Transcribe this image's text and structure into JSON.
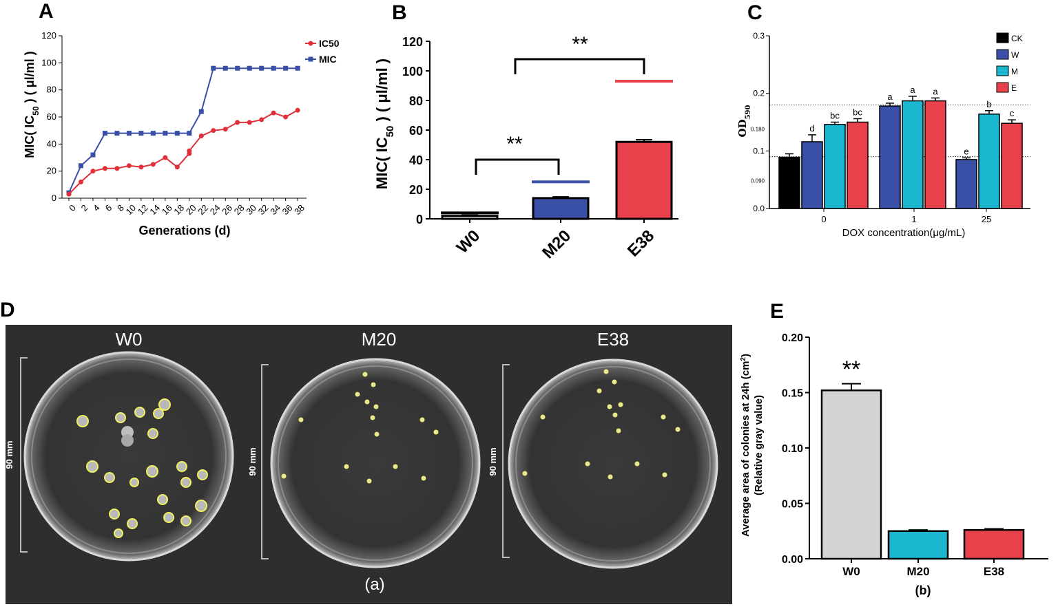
{
  "panel_labels": [
    "A",
    "B",
    "C",
    "D",
    "E"
  ],
  "chart_data": [
    {
      "panel": "A",
      "type": "line",
      "xlabel": "Generations (d)",
      "ylabel": "MIC( IC50 ) ( μl/ml )",
      "ylabel_parts": [
        "MIC( IC",
        "50",
        " ) ( μl/ml )"
      ],
      "ylim": [
        0,
        120
      ],
      "yticks": [
        "0",
        "20",
        "40",
        "60",
        "80",
        "100",
        "120"
      ],
      "xticks": [
        "0",
        "2",
        "4",
        "6",
        "8",
        "10",
        "12",
        "14",
        "16",
        "18",
        "20",
        "22",
        "24",
        "26",
        "28",
        "30",
        "32",
        "34",
        "36",
        "38"
      ],
      "x": [
        0,
        2,
        4,
        6,
        8,
        10,
        12,
        14,
        16,
        18,
        20,
        22,
        24,
        26,
        28,
        30,
        32,
        34,
        36,
        38
      ],
      "series": [
        {
          "name": "IC50",
          "color": "#e0303a",
          "marker": "circle",
          "x": [
            0,
            2,
            4,
            6,
            8,
            10,
            12,
            14,
            16,
            18,
            20,
            20,
            22,
            24,
            26,
            28,
            30,
            32,
            34,
            36,
            38
          ],
          "values": [
            3,
            12,
            20,
            22,
            22,
            24,
            23,
            25,
            30,
            23,
            33,
            35,
            46,
            50,
            51,
            56,
            56,
            58,
            63,
            60,
            65
          ]
        },
        {
          "name": "MIC",
          "color": "#3a4fa6",
          "marker": "square",
          "x": [
            0,
            2,
            4,
            6,
            8,
            10,
            12,
            14,
            16,
            18,
            20,
            22,
            24,
            26,
            28,
            30,
            32,
            34,
            36,
            38
          ],
          "values": [
            4,
            24,
            32,
            48,
            48,
            48,
            48,
            48,
            48,
            48,
            48,
            64,
            96,
            96,
            96,
            96,
            96,
            96,
            96,
            96
          ]
        }
      ]
    },
    {
      "panel": "B",
      "type": "bar",
      "ylabel": "MIC( IC50 ) ( μl/ml )",
      "ylabel_parts": [
        "MIC( IC",
        "50",
        " ) ( μl/ml )"
      ],
      "ylim": [
        0,
        120
      ],
      "yticks": [
        "0",
        "20",
        "40",
        "60",
        "80",
        "100",
        "120"
      ],
      "categories": [
        "W0",
        "M20",
        "E38"
      ],
      "series": [
        {
          "name": "IC50",
          "values": [
            2,
            14,
            52
          ],
          "errors": [
            0.5,
            0.8,
            1.5
          ],
          "colors": [
            "#ffffff",
            "#3a4fa6",
            "#e8414b"
          ]
        },
        {
          "name": "MIC",
          "values": [
            4,
            25,
            93
          ],
          "colors": [
            "#000000",
            "#3a4fa6",
            "#e8414b"
          ]
        }
      ],
      "annotations": [
        "**",
        "**"
      ]
    },
    {
      "panel": "C",
      "type": "bar",
      "xlabel": "DOX concentration(μg/mL)",
      "ylabel": "OD590",
      "ylabel_parts": [
        "OD",
        "590"
      ],
      "yticks": [
        "0.0",
        "0.1",
        "0.2",
        "0.3"
      ],
      "extra_ticks": [
        "0.180",
        "0.090"
      ],
      "categories": [
        "0",
        "1",
        "25"
      ],
      "legend": [
        {
          "name": "CK",
          "color": "#000000"
        },
        {
          "name": "W",
          "color": "#3a4fa6"
        },
        {
          "name": "M",
          "color": "#1bb6cf"
        },
        {
          "name": "E",
          "color": "#e8414b"
        }
      ],
      "bars": [
        {
          "group": "0",
          "series": "CK",
          "value": 0.089,
          "err": 0.006,
          "letter": ""
        },
        {
          "group": "0",
          "series": "W",
          "value": 0.116,
          "err": 0.012,
          "letter": "d"
        },
        {
          "group": "0",
          "series": "M",
          "value": 0.146,
          "err": 0.004,
          "letter": "bc"
        },
        {
          "group": "0",
          "series": "E",
          "value": 0.15,
          "err": 0.006,
          "letter": "bc"
        },
        {
          "group": "1",
          "series": "W",
          "value": 0.178,
          "err": 0.005,
          "letter": "a"
        },
        {
          "group": "1",
          "series": "M",
          "value": 0.187,
          "err": 0.008,
          "letter": "a"
        },
        {
          "group": "1",
          "series": "E",
          "value": 0.187,
          "err": 0.005,
          "letter": "a"
        },
        {
          "group": "25",
          "series": "W",
          "value": 0.085,
          "err": 0.003,
          "letter": "e"
        },
        {
          "group": "25",
          "series": "M",
          "value": 0.164,
          "err": 0.006,
          "letter": "b"
        },
        {
          "group": "25",
          "series": "E",
          "value": 0.148,
          "err": 0.006,
          "letter": "c"
        }
      ],
      "reference_lines": [
        0.18,
        0.09
      ]
    },
    {
      "panel": "E",
      "type": "bar",
      "ylabel": "Average area of colonies at 24h  (cm2)",
      "ylabel_parts": [
        "Average area of colonies at 24h  (cm",
        "2",
        ")"
      ],
      "ylabel2": "(Relative gray value)",
      "ylim": [
        0,
        0.2
      ],
      "yticks": [
        "0.00",
        "0.05",
        "0.10",
        "0.15",
        "0.20"
      ],
      "categories": [
        "W0",
        "M20",
        "E38"
      ],
      "values": [
        0.152,
        0.025,
        0.026
      ],
      "errors": [
        0.006,
        0.001,
        0.001
      ],
      "colors": [
        "#d4d4d4",
        "#1bb6cf",
        "#e8414b"
      ],
      "annotation": "**",
      "caption": "(b)"
    }
  ],
  "panel_d": {
    "plates": [
      {
        "label": "W0",
        "scale": "90 mm"
      },
      {
        "label": "M20",
        "scale": "90 mm"
      },
      {
        "label": "E38",
        "scale": "90 mm"
      }
    ],
    "caption": "(a)"
  }
}
